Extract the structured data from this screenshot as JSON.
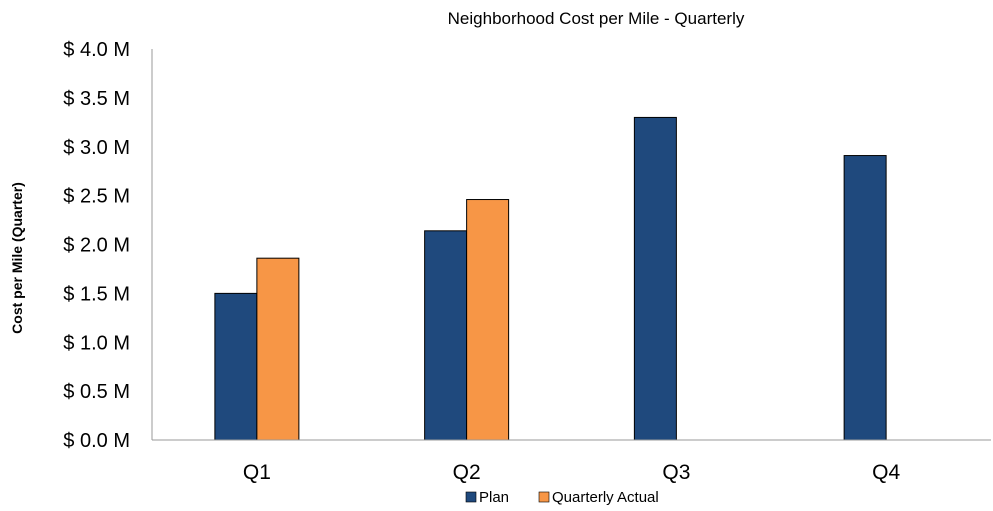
{
  "chart_data": {
    "type": "bar",
    "title": "Neighborhood Cost per Mile - Quarterly",
    "xlabel": "",
    "ylabel": "Cost per Mile (Quarter)",
    "categories": [
      "Q1",
      "Q2",
      "Q3",
      "Q4"
    ],
    "series": [
      {
        "name": "Plan",
        "color": "#1f497d",
        "values": [
          1.5,
          2.14,
          3.3,
          2.91
        ]
      },
      {
        "name": "Quarterly Actual",
        "color": "#f79646",
        "values": [
          1.86,
          2.46,
          null,
          null
        ]
      }
    ],
    "ylim": [
      0,
      4.0
    ],
    "yticks": [
      0.0,
      0.5,
      1.0,
      1.5,
      2.0,
      2.5,
      3.0,
      3.5,
      4.0
    ],
    "ytick_labels": [
      "$ 0.0 M",
      "$ 0.5 M",
      "$ 1.0 M",
      "$ 1.5 M",
      "$ 2.0 M",
      "$ 2.5 M",
      "$ 3.0 M",
      "$ 3.5 M",
      "$ 4.0 M"
    ],
    "grid": false,
    "legend_position": "bottom"
  }
}
